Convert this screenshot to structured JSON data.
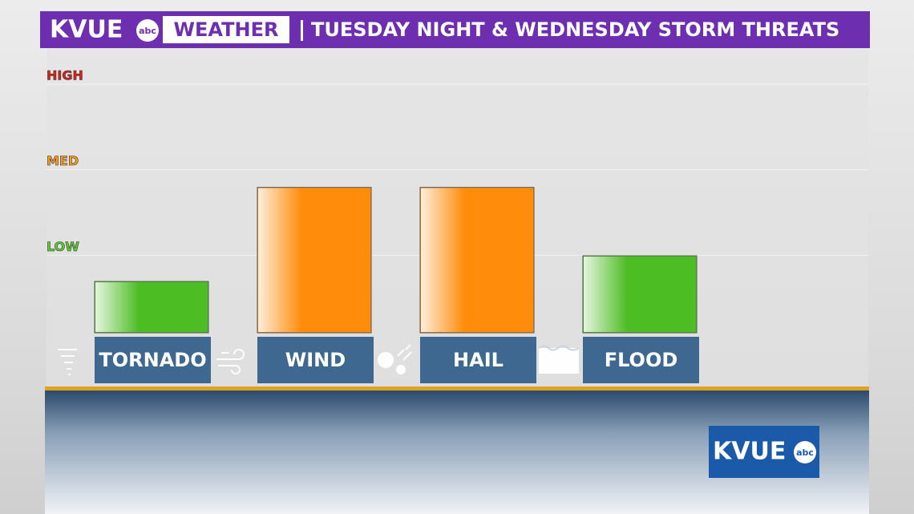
{
  "chart_data": {
    "type": "bar",
    "brand": "KVUE",
    "network": "abc",
    "section": "WEATHER",
    "title": "TUESDAY NIGHT & WEDNESDAY STORM THREATS",
    "categories": [
      "TORNADO",
      "WIND",
      "HAIL",
      "FLOOD"
    ],
    "values": [
      0.6,
      1.7,
      1.7,
      0.9
    ],
    "colors": [
      "#4cbd22",
      "#ff8c0a",
      "#ff8c0a",
      "#4cbd22"
    ],
    "ylim": [
      0,
      3
    ],
    "yticks": [
      {
        "value": 1,
        "label": "LOW"
      },
      {
        "value": 2,
        "label": "MED"
      },
      {
        "value": 3,
        "label": "HIGH"
      }
    ],
    "ytick_colors": [
      "#5ccf2c",
      "#ff9b1c",
      "#d8231a"
    ],
    "grid": true
  }
}
